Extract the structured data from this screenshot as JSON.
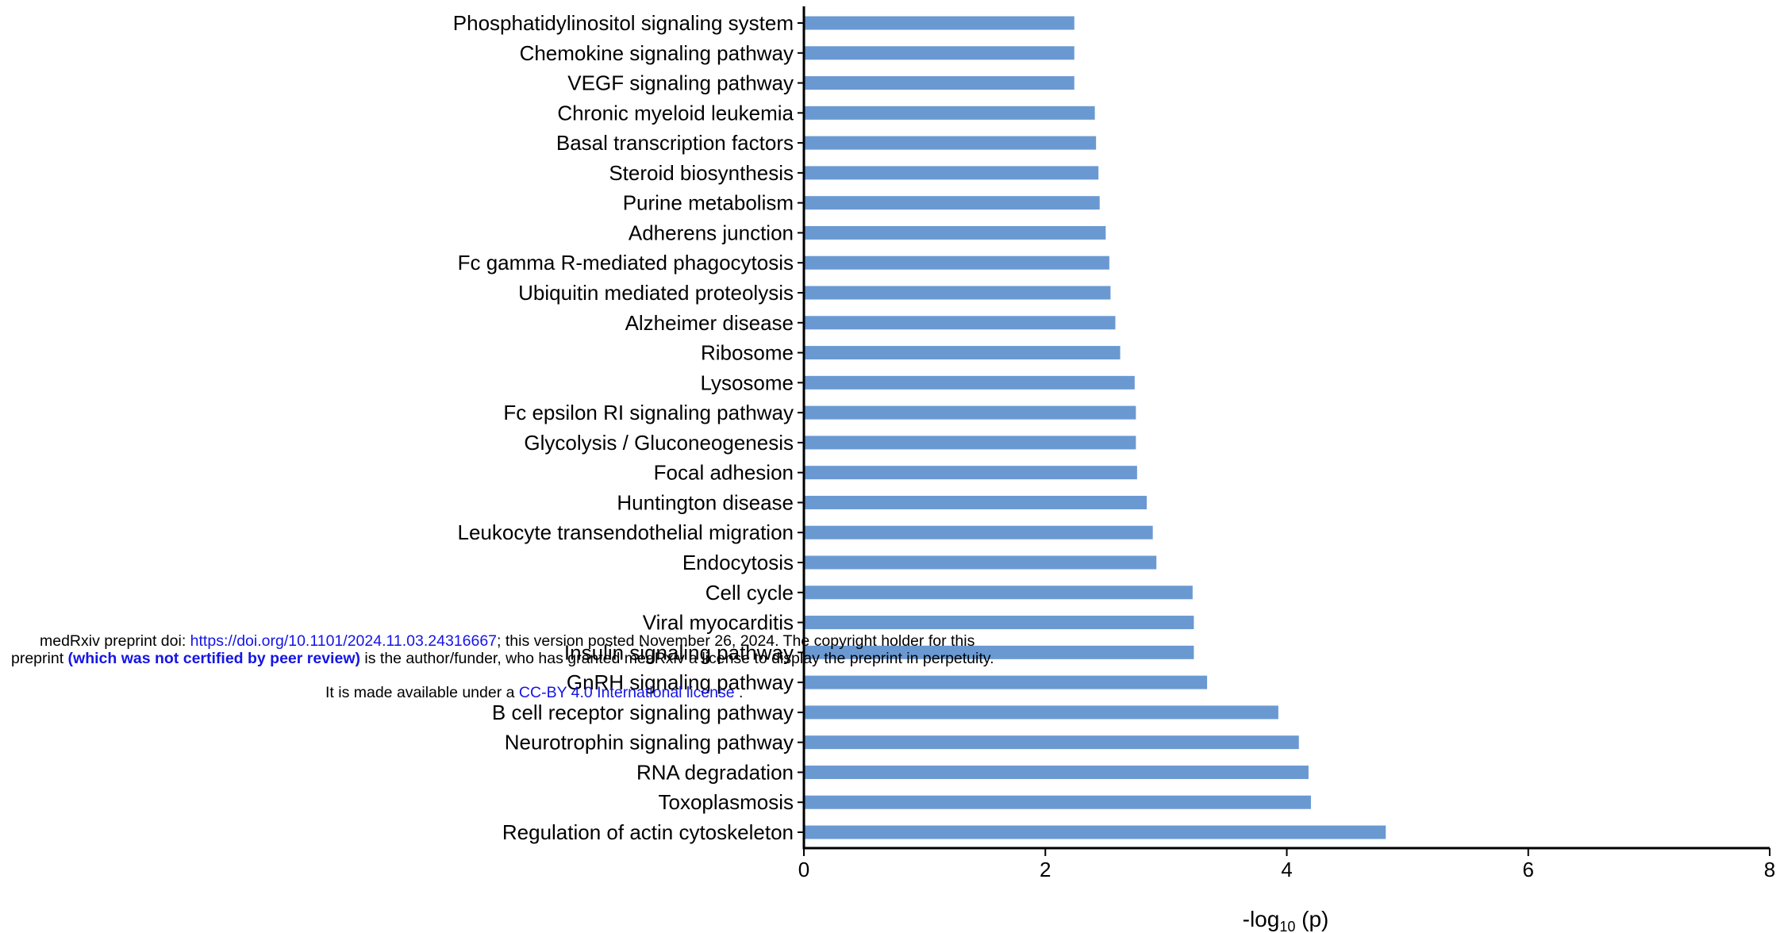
{
  "chart_data": {
    "type": "bar",
    "orientation": "horizontal",
    "categories": [
      "Phosphatidylinositol signaling system",
      "Chemokine signaling pathway",
      "VEGF signaling pathway",
      "Chronic myeloid leukemia",
      "Basal transcription factors",
      "Steroid biosynthesis",
      "Purine metabolism",
      "Adherens junction",
      "Fc gamma R-mediated phagocytosis",
      "Ubiquitin mediated proteolysis",
      "Alzheimer disease",
      "Ribosome",
      "Lysosome",
      "Fc epsilon RI signaling pathway",
      "Glycolysis / Gluconeogenesis",
      "Focal adhesion",
      "Huntington disease",
      "Leukocyte transendothelial migration",
      "Endocytosis",
      "Cell cycle",
      "Viral myocarditis",
      "Insulin signaling pathway",
      "GnRH signaling pathway",
      "B cell receptor signaling pathway",
      "Neurotrophin signaling pathway",
      "RNA degradation",
      "Toxoplasmosis",
      "Regulation of actin cytoskeleton"
    ],
    "values": [
      2.24,
      2.24,
      2.24,
      2.41,
      2.42,
      2.44,
      2.45,
      2.5,
      2.53,
      2.54,
      2.58,
      2.62,
      2.74,
      2.75,
      2.75,
      2.76,
      2.84,
      2.89,
      2.92,
      3.22,
      3.23,
      3.23,
      3.34,
      3.93,
      4.1,
      4.18,
      4.2,
      4.82
    ],
    "xlabel_prefix": "-log",
    "xlabel_sub": "10",
    "xlabel_suffix": " (p)",
    "xlim": [
      0,
      8
    ],
    "xticks": [
      "0",
      "2",
      "4",
      "6",
      "8"
    ],
    "bar_color": "#6a99d2",
    "grid": false
  },
  "notice": {
    "line1_prefix": "medRxiv preprint doi: ",
    "line1_link": "https://doi.org/10.1101/2024.11.03.24316667",
    "line1_suffix": "; this version posted November 26, 2024. The copyright holder for this",
    "line2_prefix": "preprint ",
    "line2_bold": "(which was not certified by peer review)",
    "line2_suffix": " is the author/funder, who has granted medRxiv a license to display the preprint in perpetuity.",
    "line3_prefix": "It is made available under a ",
    "line3_link": "CC-BY 4.0 International license",
    "line3_suffix": " ."
  }
}
